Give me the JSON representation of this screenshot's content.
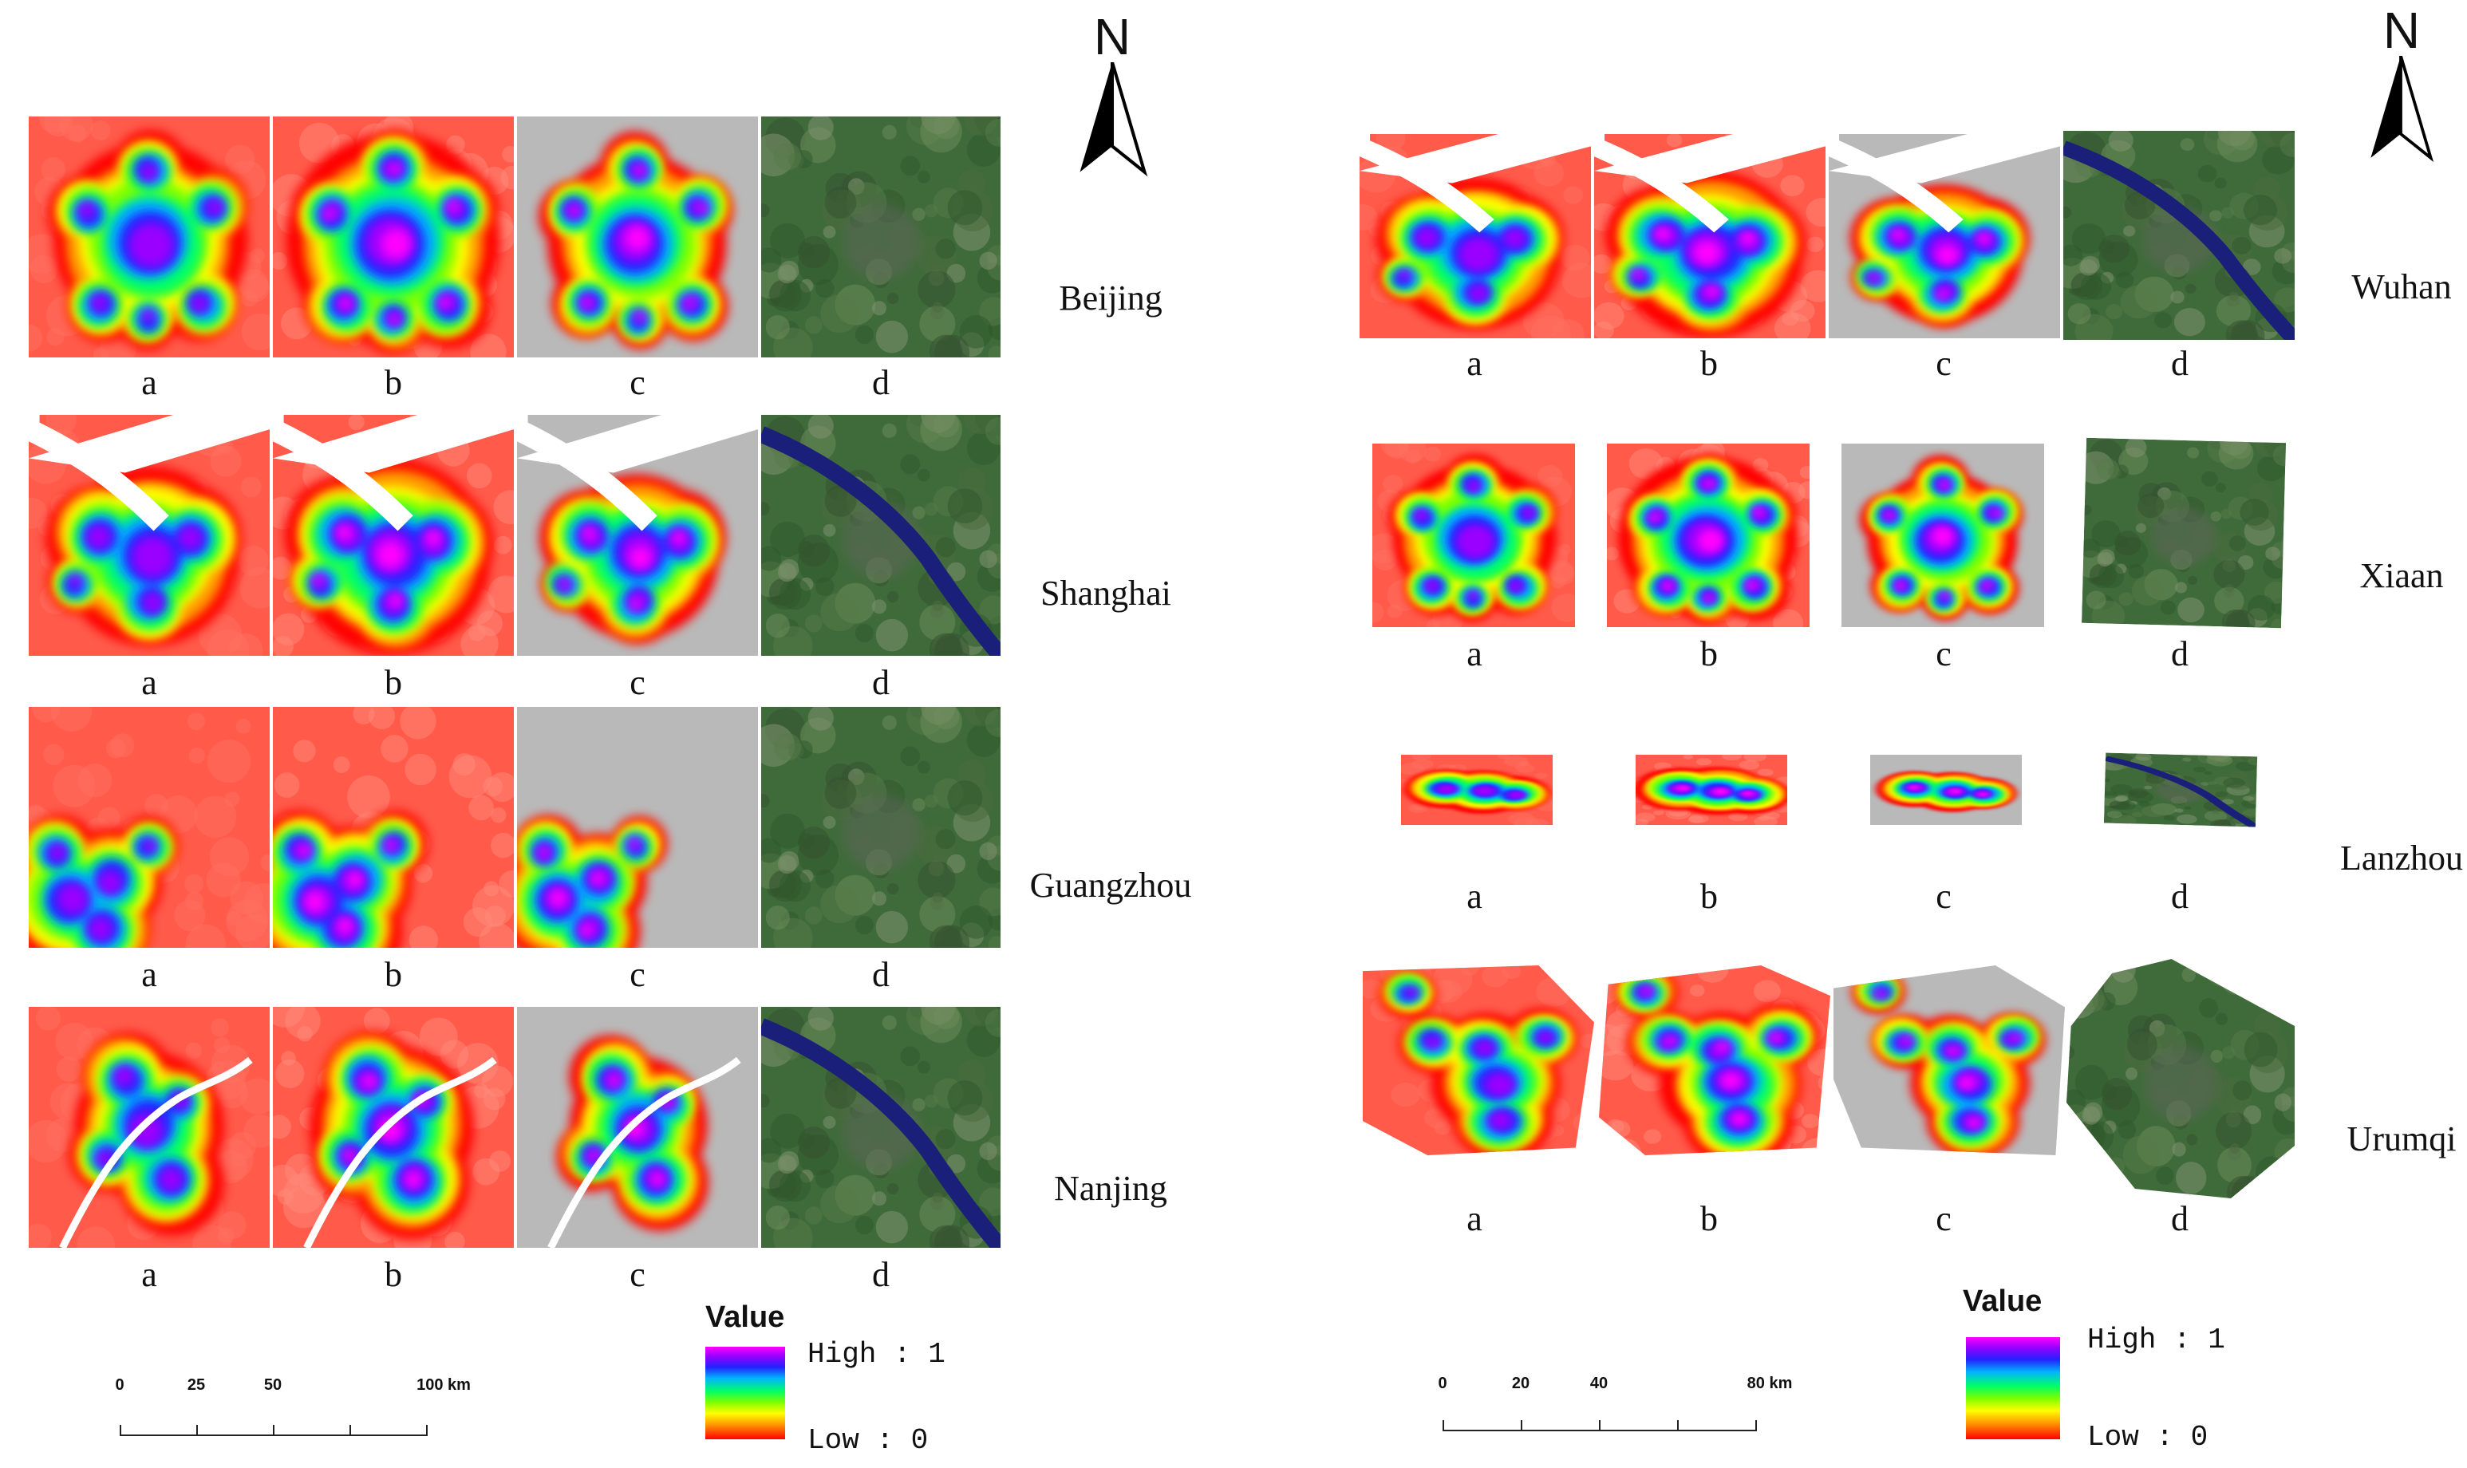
{
  "map": {
    "panel_labels": [
      "a",
      "b",
      "c",
      "d"
    ],
    "scale_bars": [
      {
        "ticks": [
          "0",
          "25",
          "50",
          "",
          "100 km"
        ]
      },
      {
        "ticks": [
          "0",
          "20",
          "40",
          "",
          "80 km"
        ]
      }
    ],
    "north_label": "N",
    "legend": {
      "title": "Value",
      "high": "High : 1",
      "low": "Low : 0",
      "colors": [
        "#ff00ff",
        "#9a00ff",
        "#2222ff",
        "#00b4ff",
        "#00ff66",
        "#7dff00",
        "#ffff00",
        "#ff9900",
        "#ff0000"
      ]
    },
    "cities": [
      {
        "name": "Beijing",
        "shape": "star",
        "water": "none"
      },
      {
        "name": "Shanghai",
        "shape": "river",
        "water": "river"
      },
      {
        "name": "Guangzhou",
        "shape": "corner",
        "water": "none"
      },
      {
        "name": "Nanjing",
        "shape": "river-diag",
        "water": "river"
      },
      {
        "name": "Wuhan",
        "shape": "river",
        "water": "river"
      },
      {
        "name": "Xiaan",
        "shape": "star",
        "water": "none"
      },
      {
        "name": "Lanzhou",
        "shape": "strip",
        "water": "none"
      },
      {
        "name": "Urumqi",
        "shape": "t",
        "water": "none"
      }
    ],
    "colors": {
      "background_red": "#ff5a4a",
      "no_data_gray": "#b9b9b9",
      "satellite_green": "#3f6b3a",
      "water_blue": "#1a1f7a"
    }
  }
}
